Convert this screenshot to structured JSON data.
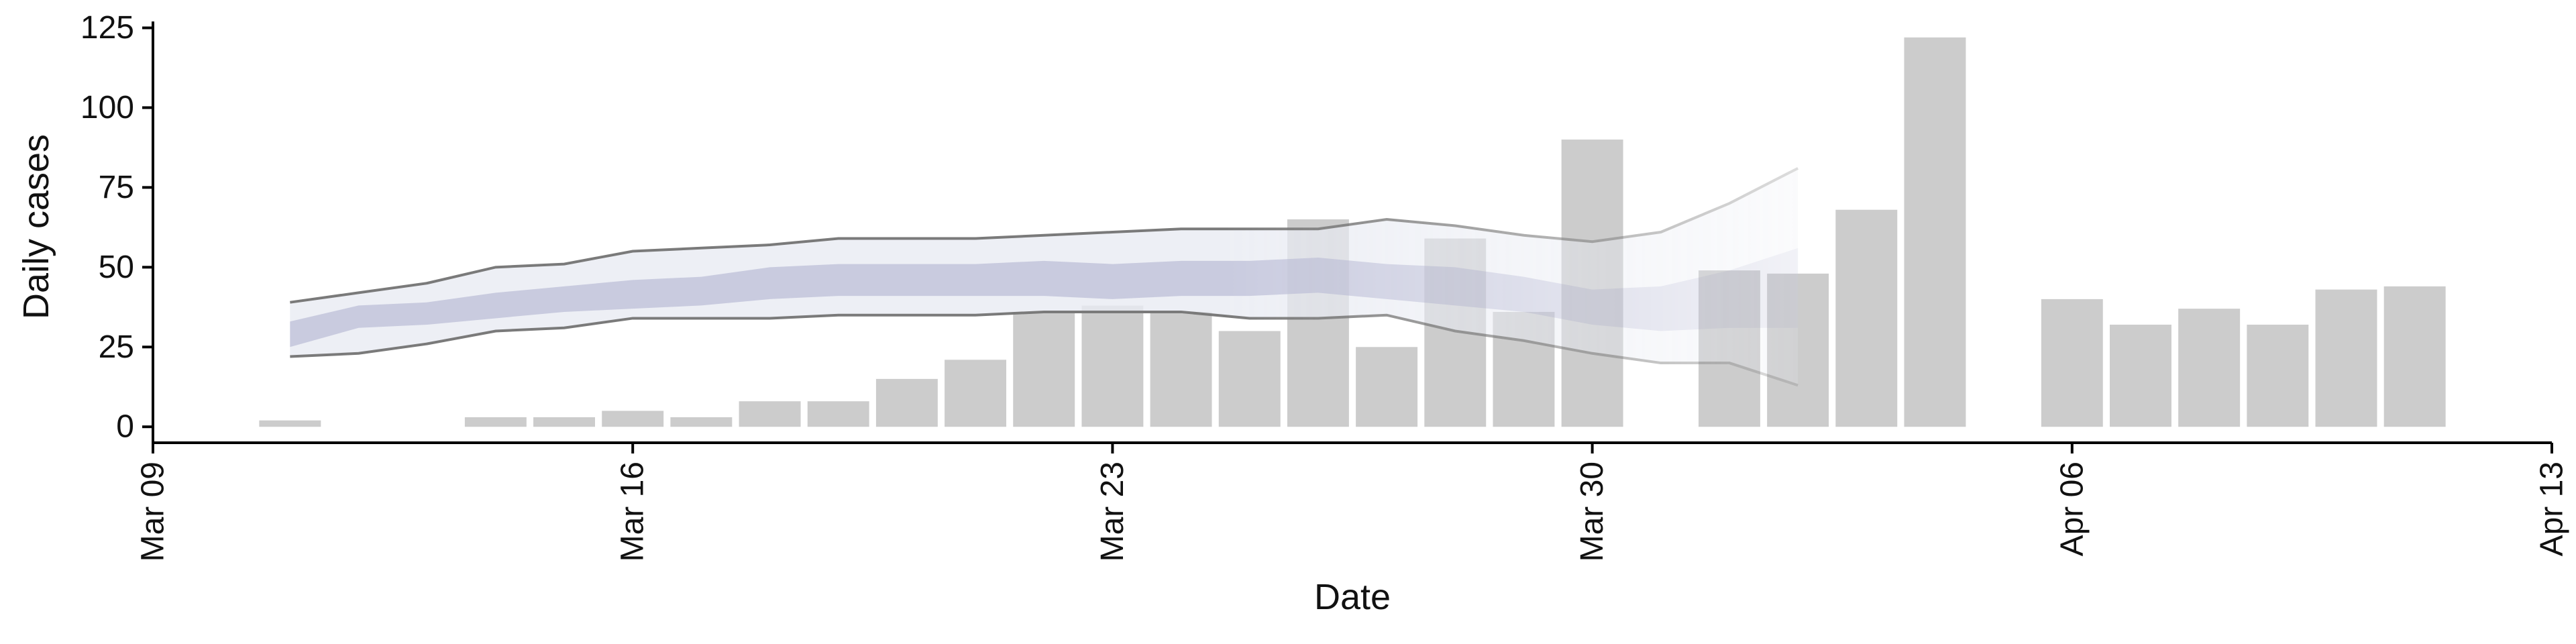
{
  "chart_data": {
    "type": "bar",
    "xlabel": "Date",
    "ylabel": "Daily cases",
    "ylim": [
      -5,
      127
    ],
    "xlim": [
      "2020-03-09",
      "2020-04-13"
    ],
    "x_ticks": [
      {
        "date": "2020-03-09",
        "label": "Mar 09"
      },
      {
        "date": "2020-03-16",
        "label": "Mar 16"
      },
      {
        "date": "2020-03-23",
        "label": "Mar 23"
      },
      {
        "date": "2020-03-30",
        "label": "Mar 30"
      },
      {
        "date": "2020-04-06",
        "label": "Apr 06"
      },
      {
        "date": "2020-04-13",
        "label": "Apr 13"
      }
    ],
    "y_ticks": [
      0,
      25,
      50,
      75,
      100,
      125
    ],
    "grid": false,
    "colors": {
      "bars": "#cccccc",
      "band_outer": "#e9ebf2",
      "band_inner": "#c3c6dc",
      "bound_line": "#7a7a7a",
      "axis": "#000000"
    },
    "bars": [
      {
        "date": "2020-03-11",
        "value": 2
      },
      {
        "date": "2020-03-14",
        "value": 3
      },
      {
        "date": "2020-03-15",
        "value": 3
      },
      {
        "date": "2020-03-16",
        "value": 5
      },
      {
        "date": "2020-03-17",
        "value": 3
      },
      {
        "date": "2020-03-18",
        "value": 8
      },
      {
        "date": "2020-03-19",
        "value": 8
      },
      {
        "date": "2020-03-20",
        "value": 15
      },
      {
        "date": "2020-03-21",
        "value": 21
      },
      {
        "date": "2020-03-22",
        "value": 36
      },
      {
        "date": "2020-03-23",
        "value": 38
      },
      {
        "date": "2020-03-24",
        "value": 36
      },
      {
        "date": "2020-03-25",
        "value": 30
      },
      {
        "date": "2020-03-26",
        "value": 65
      },
      {
        "date": "2020-03-27",
        "value": 25
      },
      {
        "date": "2020-03-28",
        "value": 59
      },
      {
        "date": "2020-03-29",
        "value": 36
      },
      {
        "date": "2020-03-30",
        "value": 90
      },
      {
        "date": "2020-04-01",
        "value": 49
      },
      {
        "date": "2020-04-02",
        "value": 48
      },
      {
        "date": "2020-04-03",
        "value": 68
      },
      {
        "date": "2020-04-04",
        "value": 122
      },
      {
        "date": "2020-04-06",
        "value": 40
      },
      {
        "date": "2020-04-07",
        "value": 32
      },
      {
        "date": "2020-04-08",
        "value": 37
      },
      {
        "date": "2020-04-09",
        "value": 32
      },
      {
        "date": "2020-04-10",
        "value": 43
      },
      {
        "date": "2020-04-11",
        "value": 44
      }
    ],
    "band": {
      "dates": [
        "2020-03-11",
        "2020-03-12",
        "2020-03-13",
        "2020-03-14",
        "2020-03-15",
        "2020-03-16",
        "2020-03-17",
        "2020-03-18",
        "2020-03-19",
        "2020-03-20",
        "2020-03-21",
        "2020-03-22",
        "2020-03-23",
        "2020-03-24",
        "2020-03-25",
        "2020-03-26",
        "2020-03-27",
        "2020-03-28",
        "2020-03-29",
        "2020-03-30",
        "2020-03-31",
        "2020-04-01",
        "2020-04-02"
      ],
      "outer_upper": [
        39,
        42,
        45,
        50,
        51,
        55,
        56,
        57,
        59,
        59,
        59,
        60,
        61,
        62,
        62,
        62,
        65,
        63,
        60,
        58,
        61,
        70,
        81
      ],
      "outer_lower": [
        22,
        23,
        26,
        30,
        31,
        34,
        34,
        34,
        35,
        35,
        35,
        36,
        36,
        36,
        34,
        34,
        35,
        30,
        27,
        23,
        20,
        20,
        13
      ],
      "inner_upper": [
        33,
        38,
        39,
        42,
        44,
        46,
        47,
        50,
        51,
        51,
        51,
        52,
        51,
        52,
        52,
        53,
        51,
        50,
        47,
        43,
        44,
        49,
        56
      ],
      "inner_lower": [
        25,
        31,
        32,
        34,
        36,
        37,
        38,
        40,
        41,
        41,
        41,
        41,
        40,
        41,
        41,
        42,
        40,
        38,
        36,
        32,
        30,
        31,
        31
      ]
    }
  }
}
